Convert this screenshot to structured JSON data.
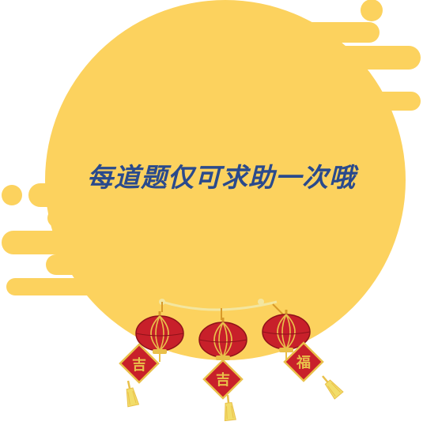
{
  "popup": {
    "message": "每道题仅可求助一次哦"
  },
  "decoration": {
    "lanterns": [
      {
        "name": "left-lantern",
        "tag_glyph": "吉"
      },
      {
        "name": "middle-lantern",
        "tag_glyph": "吉"
      },
      {
        "name": "right-lantern",
        "tag_glyph": "福"
      }
    ]
  },
  "colors": {
    "moon": "#fcd25e",
    "text": "#2a4a8c",
    "lantern": "#c8202a",
    "gold": "#e9c04a"
  }
}
